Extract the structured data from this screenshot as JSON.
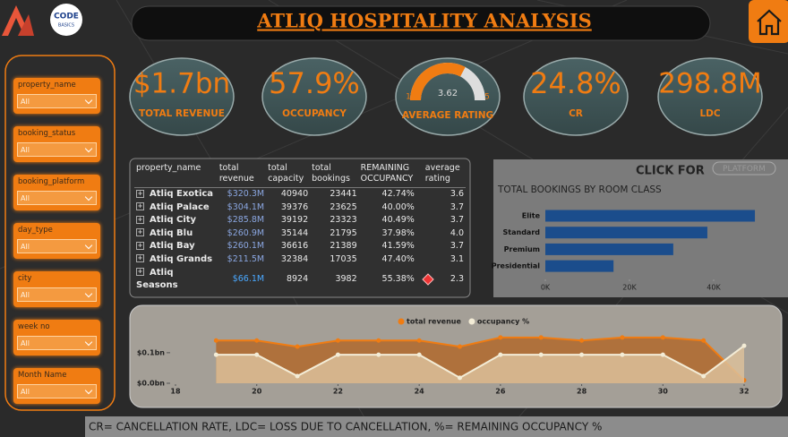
{
  "header": {
    "title": "ATLIQ HOSPITALITY ANALYSIS",
    "logo_top": "CODE",
    "logo_bottom": "BASICS"
  },
  "filters": [
    {
      "label": "property_name",
      "value": "All"
    },
    {
      "label": "booking_status",
      "value": "All"
    },
    {
      "label": "booking_platform",
      "value": "All"
    },
    {
      "label": "day_type",
      "value": "All"
    },
    {
      "label": "city",
      "value": "All"
    },
    {
      "label": "week no",
      "value": "All"
    },
    {
      "label": "Month Name",
      "value": "All"
    }
  ],
  "kpis": [
    {
      "value": "$1.7bn",
      "label": "TOTAL REVENUE"
    },
    {
      "value": "57.9%",
      "label": "OCCUPANCY"
    },
    {
      "value": 3.62,
      "label": "AVERAGE RATING",
      "min": 1,
      "max": 5
    },
    {
      "value": "24.8%",
      "label": "CR"
    },
    {
      "value": "298.8M",
      "label": "LDC"
    }
  ],
  "table": {
    "columns": [
      "property_name",
      "total revenue",
      "total capacity",
      "total bookings",
      "REMAINING OCCUPANCY",
      "average rating"
    ],
    "rows": [
      [
        "Atliq Exotica",
        "$320.3M",
        "40940",
        "23441",
        "42.74%",
        "3.6"
      ],
      [
        "Atliq Palace",
        "$304.1M",
        "39376",
        "23625",
        "40.00%",
        "3.7"
      ],
      [
        "Atliq City",
        "$285.8M",
        "39192",
        "23323",
        "40.49%",
        "3.7"
      ],
      [
        "Atliq Blu",
        "$260.9M",
        "35144",
        "21795",
        "37.98%",
        "4.0"
      ],
      [
        "Atliq Bay",
        "$260.1M",
        "36616",
        "21389",
        "41.59%",
        "3.7"
      ],
      [
        "Atliq Grands",
        "$211.5M",
        "32384",
        "17035",
        "47.40%",
        "3.1"
      ],
      [
        "Atliq Seasons",
        "$66.1M",
        "8924",
        "3982",
        "55.38%",
        "2.3"
      ]
    ]
  },
  "chart_data": [
    {
      "type": "hbar",
      "heading": "CLICK FOR",
      "button": "PLATFORM",
      "title": "TOTAL BOOKINGS BY ROOM CLASS",
      "categories": [
        "Elite",
        "Standard",
        "Premium",
        "Presidential"
      ],
      "values": [
        49800,
        38500,
        30400,
        16200
      ],
      "color": "#1b4d8c",
      "xlim": [
        0,
        50000
      ],
      "xticks": [
        {
          "value": 0,
          "label": "0K"
        },
        {
          "value": 20000,
          "label": "20K"
        },
        {
          "value": 40000,
          "label": "40K"
        }
      ]
    },
    {
      "type": "line",
      "x": [
        19,
        20,
        21,
        22,
        23,
        24,
        25,
        26,
        27,
        28,
        29,
        30,
        31,
        32
      ],
      "series": [
        {
          "name": "total revenue",
          "color": "#f07c12",
          "values": [
            0.14,
            0.14,
            0.12,
            0.14,
            0.14,
            0.14,
            0.12,
            0.15,
            0.15,
            0.14,
            0.15,
            0.15,
            0.14,
            0.01
          ]
        },
        {
          "name": "occupancy %",
          "color": "#f3ecd6",
          "axis": "y2",
          "values": [
            57.9,
            57.9,
            50.5,
            57.9,
            57.9,
            57.9,
            49.9,
            57.9,
            57.9,
            57.9,
            57.9,
            57.9,
            50.5,
            61.0
          ]
        }
      ],
      "xlim": [
        18,
        32
      ],
      "xticks": [
        18,
        20,
        22,
        24,
        26,
        28,
        30,
        32
      ],
      "ylim": [
        0,
        0.17
      ],
      "yticks": [
        {
          "value": 0,
          "label": "$0.0bn"
        },
        {
          "value": 0.1,
          "label": "$0.1bn"
        }
      ],
      "y2lim": [
        48,
        66
      ],
      "legend": "top"
    }
  ],
  "footer": "CR= CANCELLATION RATE,  LDC= LOSS DUE TO CANCELLATION, %=  REMAINING OCCUPANCY %"
}
